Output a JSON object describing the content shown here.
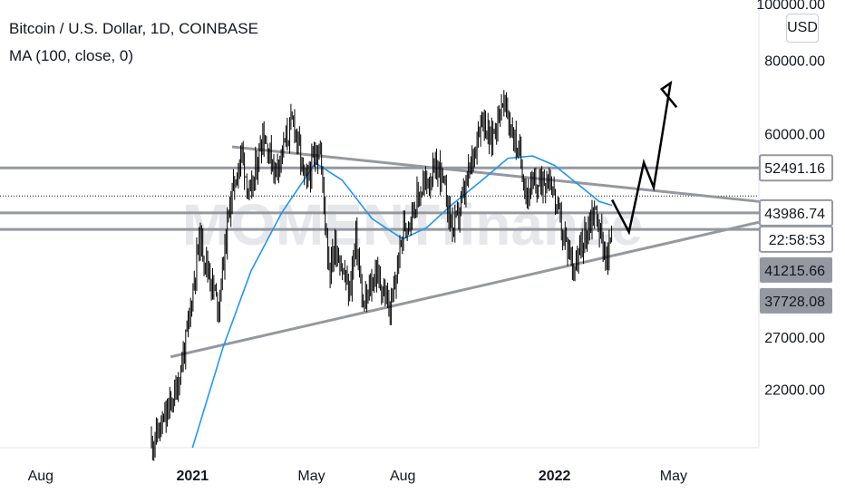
{
  "legend": {
    "symbol_line": "Bitcoin / U.S. Dollar, 1D, COINBASE",
    "indicator_line": "MA (100, close, 0)"
  },
  "currency_button": "USD",
  "watermark": "MOMENTfinance",
  "colors": {
    "candle": "#000000",
    "ma_line": "#2196f3",
    "level_line": "#9598a1",
    "trend_line": "#9598a1",
    "projection": "#000000",
    "label_bg": "#9598a1"
  },
  "chart_data": {
    "type": "candlestick",
    "title": "Bitcoin / U.S. Dollar, 1D, COINBASE",
    "y_scale": "log",
    "ylim": [
      17500,
      100000
    ],
    "xlim": [
      "2020-06-21",
      "2022-07-26"
    ],
    "y_ticks": [
      "100000.00",
      "80000.00",
      "60000.00",
      "27000.00",
      "22000.00"
    ],
    "x_ticks": [
      {
        "date": "2020-08-01",
        "label": "Aug"
      },
      {
        "date": "2021-01-01",
        "label": "2021"
      },
      {
        "date": "2021-05-01",
        "label": "May"
      },
      {
        "date": "2021-08-01",
        "label": "Aug"
      },
      {
        "date": "2022-01-01",
        "label": "2022"
      },
      {
        "date": "2022-05-01",
        "label": "May"
      }
    ],
    "price_labels": [
      {
        "text": "52491.16",
        "style": "outline"
      },
      {
        "text": "43986.74",
        "style": "outline"
      },
      {
        "text": "22:58:53",
        "style": "outline"
      },
      {
        "text": "41215.66",
        "style": "filled"
      },
      {
        "text": "37728.08",
        "style": "filled"
      }
    ],
    "horizontal_levels": [
      52491.16,
      43986.74,
      41215.66
    ],
    "last_price_dotted": 47000,
    "trendlines": [
      {
        "name": "upper",
        "points": [
          [
            "2021-02-10",
            57000
          ],
          [
            "2022-07-26",
            46000
          ]
        ]
      },
      {
        "name": "lower",
        "points": [
          [
            "2020-12-10",
            25000
          ],
          [
            "2022-07-26",
            42400
          ]
        ]
      }
    ],
    "projection_path": [
      [
        "2022-02-28",
        46300
      ],
      [
        "2022-03-17",
        40800
      ],
      [
        "2022-04-01",
        53600
      ],
      [
        "2022-04-11",
        48600
      ],
      [
        "2022-04-28",
        73200
      ],
      [
        "2022-04-19",
        71500
      ],
      [
        "2022-05-04",
        66600
      ]
    ],
    "price_path": [
      [
        "2020-11-20",
        17800
      ],
      [
        "2020-12-01",
        19000
      ],
      [
        "2020-12-16",
        22000
      ],
      [
        "2020-12-27",
        27500
      ],
      [
        "2021-01-08",
        40000
      ],
      [
        "2021-01-27",
        30500
      ],
      [
        "2021-02-08",
        46000
      ],
      [
        "2021-02-20",
        56000
      ],
      [
        "2021-02-28",
        46000
      ],
      [
        "2021-03-13",
        60500
      ],
      [
        "2021-03-25",
        52000
      ],
      [
        "2021-04-13",
        63500
      ],
      [
        "2021-04-25",
        49000
      ],
      [
        "2021-05-09",
        58000
      ],
      [
        "2021-05-19",
        35000
      ],
      [
        "2021-05-25",
        39000
      ],
      [
        "2021-06-08",
        32000
      ],
      [
        "2021-06-15",
        40000
      ],
      [
        "2021-06-22",
        30000
      ],
      [
        "2021-07-05",
        35000
      ],
      [
        "2021-07-20",
        29800
      ],
      [
        "2021-08-01",
        41000
      ],
      [
        "2021-08-22",
        49000
      ],
      [
        "2021-09-07",
        52500
      ],
      [
        "2021-09-21",
        41000
      ],
      [
        "2021-10-03",
        48000
      ],
      [
        "2021-10-20",
        65000
      ],
      [
        "2021-10-28",
        58000
      ],
      [
        "2021-11-10",
        68500
      ],
      [
        "2021-11-28",
        54000
      ],
      [
        "2021-12-04",
        47500
      ],
      [
        "2021-12-27",
        51000
      ],
      [
        "2022-01-10",
        40000
      ],
      [
        "2022-01-22",
        35500
      ],
      [
        "2022-02-10",
        45000
      ],
      [
        "2022-02-24",
        35800
      ],
      [
        "2022-02-28",
        43500
      ]
    ],
    "ma_path": [
      [
        "2021-01-01",
        17500
      ],
      [
        "2021-02-01",
        26000
      ],
      [
        "2021-03-01",
        35000
      ],
      [
        "2021-04-01",
        44000
      ],
      [
        "2021-05-05",
        53500
      ],
      [
        "2021-06-01",
        50000
      ],
      [
        "2021-07-01",
        43000
      ],
      [
        "2021-08-01",
        39700
      ],
      [
        "2021-08-25",
        41500
      ],
      [
        "2021-09-20",
        45500
      ],
      [
        "2021-10-20",
        50000
      ],
      [
        "2021-11-15",
        54500
      ],
      [
        "2021-12-10",
        55000
      ],
      [
        "2022-01-01",
        53000
      ],
      [
        "2022-01-26",
        49000
      ],
      [
        "2022-02-15",
        46000
      ],
      [
        "2022-02-28",
        45300
      ]
    ]
  }
}
